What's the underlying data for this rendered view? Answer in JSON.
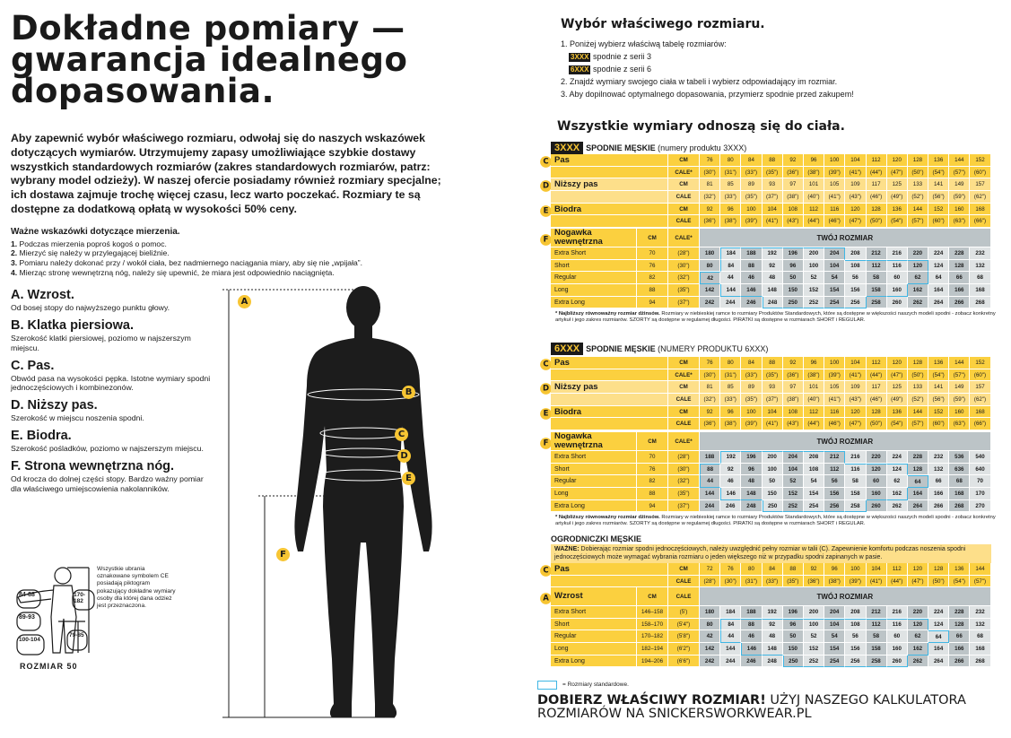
{
  "left": {
    "title_lines": [
      "Dokładne pomiary —",
      "gwarancja idealnego",
      "dopasowania."
    ],
    "intro": "Aby zapewnić wybór właściwego rozmiaru, odwołaj się do naszych wskazówek dotyczących wymiarów. Utrzymujemy zapasy umożliwiające szybkie dostawy wszystkich standardowych rozmiarów (zakres standardowych rozmiarów, patrz: wybrany model odzieży). W naszej ofercie posiadamy również rozmiary specjalne; ich dostawa zajmuje trochę więcej czasu, lecz warto poczekać. Rozmiary te są dostępne za dodatkową opłatą w wysokości 50% ceny.",
    "tips_heading": "Ważne wskazówki dotyczące mierzenia.",
    "tips": [
      {
        "n": "1.",
        "t": "Podczas mierzenia poproś kogoś o pomoc."
      },
      {
        "n": "2.",
        "t": "Mierzyć się należy w przylegającej bieliźnie."
      },
      {
        "n": "3.",
        "t": "Pomiaru należy dokonać przy / wokół ciała, bez nadmiernego naciągania miary, aby się nie „wpijała”."
      },
      {
        "n": "4.",
        "t": "Mierząc stronę wewnętrzną nóg, należy się upewnić, że miara jest odpowiednio naciągnięta."
      }
    ],
    "measures": [
      {
        "h": "A. Wzrost.",
        "t": "Od bosej stopy do najwyższego punktu głowy."
      },
      {
        "h": "B. Klatka piersiowa.",
        "t": "Szerokość klatki piersiowej, poziomo w najszerszym miejscu."
      },
      {
        "h": "C. Pas.",
        "t": "Obwód pasa na wysokości pępka. Istotne wymiary spodni jednoczęściowych i kombinezonów."
      },
      {
        "h": "D. Niższy pas.",
        "t": "Szerokość w miejscu noszenia spodni."
      },
      {
        "h": "E. Biodra.",
        "t": "Szerokość pośladków, poziomo w najszerszym miejscu."
      },
      {
        "h": "F. Strona wewnętrzna nóg.",
        "t": "Od krocza do dolnej części stopy. Bardzo ważny pomiar dla właściwego umiejscowienia nakolanników."
      }
    ],
    "figure_markers": [
      "A",
      "B",
      "C",
      "D",
      "E",
      "F"
    ],
    "ce": {
      "text": "Wszystkie ubrania oznakowane symbolem CE posiadają piktogram pokazujący dokładne wymiary osoby dla której dana odzież jest przeznaczona.",
      "labels": [
        "84-88",
        "89-93",
        "100-104",
        "170-182",
        "79-85"
      ],
      "size": "ROZMIAR 50"
    }
  },
  "right": {
    "heading": "Wybór właściwego rozmiaru.",
    "step1": "1.  Poniżej wybierz właściwą tabelę rozmiarów:",
    "series": [
      {
        "tag": "3XXX",
        "t": "spodnie z serii 3"
      },
      {
        "tag": "6XXX",
        "t": "spodnie z serii 6"
      }
    ],
    "step2": "2.  Znajdź wymiary swojego ciała w tabeli i wybierz odpowiadający im rozmiar.",
    "step3": "3.  Aby dopilnować optymalnego dopasowania, przymierz spodnie przed zakupem!",
    "all_heading": "Wszystkie wymiary odnoszą się do ciała.",
    "legend": "= Rozmiary standardowe.",
    "cta_bold": "DOBIERZ WŁAŚCIWY ROZMIAR!",
    "cta_rest": " UŻYJ NASZEGO KALKULATORA ROZMIARÓW NA SNICKERSWORKWEAR.PL",
    "footnote_bold": "* Najbliższy równoważny rozmiar dżinsów.",
    "footnote": " Rozmiary w niebieskiej ramce to rozmiary Produktów Standardowych, które są dostępne w większości naszych modeli spodni - zobacz konkretny artykuł i jego zakres rozmiarów. SZORTY są dostępne w regularnej długości. PIRATKI są dostępne w rozmiarach SHORT i REGULAR."
  },
  "colors": {
    "yellow": "#fbd03f",
    "yellow_light": "#fddf8a",
    "grid_gray": "#bcc4c7",
    "standard_outline": "#3fb6e4"
  },
  "tables": [
    {
      "tag": "3XXX",
      "title": "SPODNIE MĘSKIE",
      "subtitle": "(numery produktu 3XXX)",
      "measures": [
        {
          "letter": "C",
          "label": "Pas",
          "rows": [
            {
              "unit": "CM",
              "values": [
                "76",
                "80",
                "84",
                "88",
                "92",
                "96",
                "100",
                "104",
                "112",
                "120",
                "128",
                "136",
                "144",
                "152"
              ]
            },
            {
              "unit": "CALE*",
              "values": [
                "(30\")",
                "(31\")",
                "(33\")",
                "(35\")",
                "(36\")",
                "(38\")",
                "(39\")",
                "(41\")",
                "(44\")",
                "(47\")",
                "(50\")",
                "(54\")",
                "(57\")",
                "(60\")"
              ]
            }
          ]
        },
        {
          "letter": "D",
          "label": "Niższy pas",
          "rows": [
            {
              "unit": "CM",
              "values": [
                "81",
                "85",
                "89",
                "93",
                "97",
                "101",
                "105",
                "109",
                "117",
                "125",
                "133",
                "141",
                "149",
                "157"
              ]
            },
            {
              "unit": "CALE",
              "values": [
                "(32\")",
                "(33\")",
                "(35\")",
                "(37\")",
                "(38\")",
                "(40\")",
                "(41\")",
                "(43\")",
                "(46\")",
                "(49\")",
                "(52\")",
                "(56\")",
                "(59\")",
                "(62\")"
              ]
            }
          ]
        },
        {
          "letter": "E",
          "label": "Biodra",
          "rows": [
            {
              "unit": "CM",
              "values": [
                "92",
                "96",
                "100",
                "104",
                "108",
                "112",
                "116",
                "120",
                "128",
                "136",
                "144",
                "152",
                "160",
                "168"
              ]
            },
            {
              "unit": "CALE",
              "values": [
                "(36\")",
                "(38\")",
                "(39\")",
                "(41\")",
                "(43\")",
                "(44\")",
                "(46\")",
                "(47\")",
                "(50\")",
                "(54\")",
                "(57\")",
                "(60\")",
                "(63\")",
                "(66\")"
              ]
            }
          ]
        }
      ],
      "grid": {
        "letter": "F",
        "label": "Nogawka wewnętrzna",
        "col1": "CM",
        "col2": "CALE*",
        "header": "TWÓJ ROZMIAR",
        "rows": [
          {
            "name": "Extra Short",
            "cm": "70",
            "cale": "(28\")",
            "sizes": [
              "180",
              "184",
              "188",
              "192",
              "196",
              "200",
              "204",
              "208",
              "212",
              "216",
              "220",
              "224",
              "228",
              "232"
            ],
            "standard": [
              1,
              6
            ]
          },
          {
            "name": "Short",
            "cm": "76",
            "cale": "(30\")",
            "sizes": [
              "80",
              "84",
              "88",
              "92",
              "96",
              "100",
              "104",
              "108",
              "112",
              "116",
              "120",
              "124",
              "128",
              "132"
            ],
            "standard": [
              1,
              10
            ]
          },
          {
            "name": "Regular",
            "cm": "82",
            "cale": "(32\")",
            "sizes": [
              "42",
              "44",
              "46",
              "48",
              "50",
              "52",
              "54",
              "56",
              "58",
              "60",
              "62",
              "64",
              "66",
              "68"
            ],
            "standard": [
              0,
              10
            ]
          },
          {
            "name": "Long",
            "cm": "88",
            "cale": "(35\")",
            "sizes": [
              "142",
              "144",
              "146",
              "148",
              "150",
              "152",
              "154",
              "156",
              "158",
              "160",
              "162",
              "164",
              "166",
              "168"
            ],
            "standard": [
              1,
              9
            ]
          },
          {
            "name": "Extra Long",
            "cm": "94",
            "cale": "(37\")",
            "sizes": [
              "242",
              "244",
              "246",
              "248",
              "250",
              "252",
              "254",
              "256",
              "258",
              "260",
              "262",
              "264",
              "266",
              "268"
            ],
            "standard": [
              3,
              7
            ]
          }
        ]
      },
      "footnote": true
    },
    {
      "tag": "6XXX",
      "title": "SPODNIE MĘSKIE",
      "subtitle": "(NUMERY PRODUKTU 6XXX)",
      "measures": [
        {
          "letter": "C",
          "label": "Pas",
          "rows": [
            {
              "unit": "CM",
              "values": [
                "76",
                "80",
                "84",
                "88",
                "92",
                "96",
                "100",
                "104",
                "112",
                "120",
                "128",
                "136",
                "144",
                "152"
              ]
            },
            {
              "unit": "CALE*",
              "values": [
                "(30\")",
                "(31\")",
                "(33\")",
                "(35\")",
                "(36\")",
                "(38\")",
                "(39\")",
                "(41\")",
                "(44\")",
                "(47\")",
                "(50\")",
                "(54\")",
                "(57\")",
                "(60\")"
              ]
            }
          ]
        },
        {
          "letter": "D",
          "label": "Niższy pas",
          "rows": [
            {
              "unit": "CM",
              "values": [
                "81",
                "85",
                "89",
                "93",
                "97",
                "101",
                "105",
                "109",
                "117",
                "125",
                "133",
                "141",
                "149",
                "157"
              ]
            },
            {
              "unit": "CALE",
              "values": [
                "(32\")",
                "(33\")",
                "(35\")",
                "(37\")",
                "(38\")",
                "(40\")",
                "(41\")",
                "(43\")",
                "(46\")",
                "(49\")",
                "(52\")",
                "(56\")",
                "(59\")",
                "(62\")"
              ]
            }
          ]
        },
        {
          "letter": "E",
          "label": "Biodra",
          "rows": [
            {
              "unit": "CM",
              "values": [
                "92",
                "96",
                "100",
                "104",
                "108",
                "112",
                "116",
                "120",
                "128",
                "136",
                "144",
                "152",
                "160",
                "168"
              ]
            },
            {
              "unit": "CALE",
              "values": [
                "(36\")",
                "(38\")",
                "(39\")",
                "(41\")",
                "(43\")",
                "(44\")",
                "(46\")",
                "(47\")",
                "(50\")",
                "(54\")",
                "(57\")",
                "(60\")",
                "(63\")",
                "(66\")"
              ]
            }
          ]
        }
      ],
      "grid": {
        "letter": "F",
        "label": "Nogawka wewnętrzna",
        "col1": "CM",
        "col2": "CALE*",
        "header": "TWÓJ ROZMIAR",
        "rows": [
          {
            "name": "Extra Short",
            "cm": "70",
            "cale": "(28\")",
            "sizes": [
              "188",
              "192",
              "196",
              "200",
              "204",
              "208",
              "212",
              "216",
              "220",
              "224",
              "228",
              "232",
              "536",
              "540"
            ],
            "standard": [
              1,
              6
            ]
          },
          {
            "name": "Short",
            "cm": "76",
            "cale": "(30\")",
            "sizes": [
              "88",
              "92",
              "96",
              "100",
              "104",
              "108",
              "112",
              "116",
              "120",
              "124",
              "128",
              "132",
              "636",
              "640"
            ],
            "standard": [
              0,
              9
            ]
          },
          {
            "name": "Regular",
            "cm": "82",
            "cale": "(32\")",
            "sizes": [
              "44",
              "46",
              "48",
              "50",
              "52",
              "54",
              "56",
              "58",
              "60",
              "62",
              "64",
              "66",
              "68",
              "70"
            ],
            "standard": [
              0,
              10
            ]
          },
          {
            "name": "Long",
            "cm": "88",
            "cale": "(35\")",
            "sizes": [
              "144",
              "146",
              "148",
              "150",
              "152",
              "154",
              "156",
              "158",
              "160",
              "162",
              "164",
              "166",
              "168",
              "170"
            ],
            "standard": [
              1,
              9
            ]
          },
          {
            "name": "Extra Long",
            "cm": "94",
            "cale": "(37\")",
            "sizes": [
              "244",
              "246",
              "248",
              "250",
              "252",
              "254",
              "256",
              "258",
              "260",
              "262",
              "264",
              "266",
              "268",
              "270"
            ],
            "standard": [
              3,
              7
            ]
          }
        ]
      },
      "footnote": true
    },
    {
      "tag": "",
      "title": "OGRODNICZKI MĘSKIE",
      "subtitle": "",
      "note_bold": "WAŻNE:",
      "note": " Dobierając rozmiar spodni jednoczęściowych, należy uwzględnić pełny rozmiar w talii (C). Zapewnienie komfortu podczas noszenia spodni jednoczęściowych może wymagać wybrania rozmiaru o jeden większego niż w przypadku spodni zapinanych w pasie.",
      "measures": [
        {
          "letter": "C",
          "label": "Pas",
          "rows": [
            {
              "unit": "CM",
              "values": [
                "72",
                "76",
                "80",
                "84",
                "88",
                "92",
                "96",
                "100",
                "104",
                "112",
                "120",
                "128",
                "136",
                "144"
              ]
            },
            {
              "unit": "CALE",
              "values": [
                "(28\")",
                "(30\")",
                "(31\")",
                "(33\")",
                "(35\")",
                "(36\")",
                "(38\")",
                "(39\")",
                "(41\")",
                "(44\")",
                "(47\")",
                "(50\")",
                "(54\")",
                "(57\")"
              ]
            }
          ]
        }
      ],
      "grid": {
        "letter": "A",
        "label": "Wzrost",
        "col1": "CM",
        "col2": "CALE",
        "header": "TWÓJ ROZMIAR",
        "rows": [
          {
            "name": "Extra Short",
            "cm": "146–158",
            "cale": "(5')",
            "sizes": [
              "180",
              "184",
              "188",
              "192",
              "196",
              "200",
              "204",
              "208",
              "212",
              "216",
              "220",
              "224",
              "228",
              "232"
            ],
            "standard": null
          },
          {
            "name": "Short",
            "cm": "158–170",
            "cale": "(5'4\")",
            "sizes": [
              "80",
              "84",
              "88",
              "92",
              "96",
              "100",
              "104",
              "108",
              "112",
              "116",
              "120",
              "124",
              "128",
              "132"
            ],
            "standard": [
              1,
              10
            ]
          },
          {
            "name": "Regular",
            "cm": "170–182",
            "cale": "(5'8\")",
            "sizes": [
              "42",
              "44",
              "46",
              "48",
              "50",
              "52",
              "54",
              "56",
              "58",
              "60",
              "62",
              "64",
              "66",
              "68"
            ],
            "standard": [
              1,
              11
            ]
          },
          {
            "name": "Long",
            "cm": "182–194",
            "cale": "(6'2\")",
            "sizes": [
              "142",
              "144",
              "146",
              "148",
              "150",
              "152",
              "154",
              "156",
              "158",
              "160",
              "162",
              "164",
              "166",
              "168"
            ],
            "standard": [
              2,
              10
            ]
          },
          {
            "name": "Extra Long",
            "cm": "194–206",
            "cale": "(6'6\")",
            "sizes": [
              "242",
              "244",
              "246",
              "248",
              "250",
              "252",
              "254",
              "256",
              "258",
              "260",
              "262",
              "264",
              "266",
              "268"
            ],
            "standard": [
              4,
              9
            ]
          }
        ]
      },
      "footnote": false
    }
  ]
}
